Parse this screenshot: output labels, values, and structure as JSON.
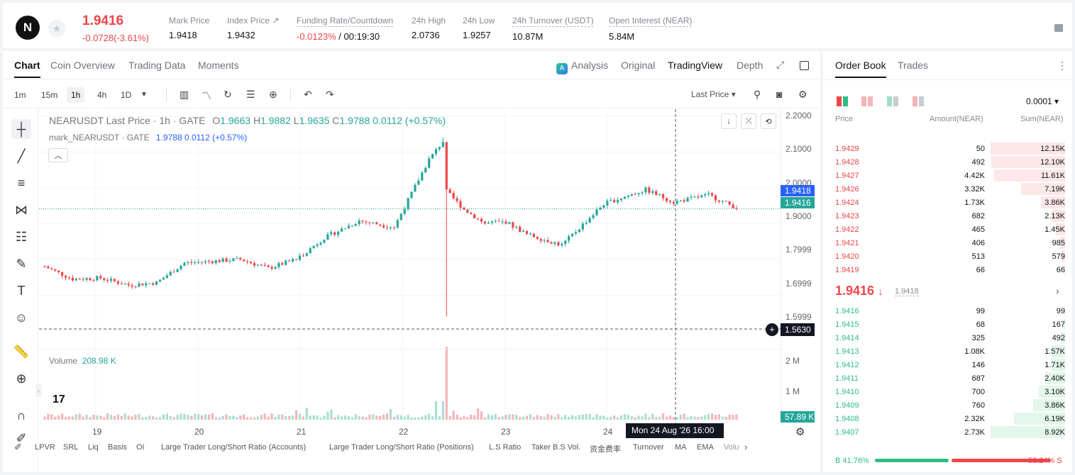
{
  "colors": {
    "up": "#26a69a",
    "down": "#ef454a",
    "ask_bg": "#fde7e8",
    "bid_bg": "#e3f6ec",
    "bid_text": "#2ebd85"
  },
  "ticker": {
    "logo": "N",
    "star_icon": "star-icon",
    "last_price": "1.9416",
    "change": "-0.0728(-3.61%)",
    "stats": [
      {
        "label": "Mark Price",
        "value": "1.9418"
      },
      {
        "label": "Index Price ↗",
        "value": "1.9432"
      },
      {
        "label": "Funding Rate/Countdown",
        "value_red": "-0.0123%",
        "value": " / 00:19:30"
      },
      {
        "label": "24h High",
        "value": "2.0736"
      },
      {
        "label": "24h Low",
        "value": "1.9257"
      },
      {
        "label": "24h Turnover (USDT)",
        "value": "10.87M"
      },
      {
        "label": "Open Interest (NEAR)",
        "value": "5.84M"
      }
    ]
  },
  "chart_tabs": [
    "Chart",
    "Coin Overview",
    "Trading Data",
    "Moments"
  ],
  "view_tabs": {
    "analysis": "Analysis",
    "original": "Original",
    "tradingview": "TradingView",
    "depth": "Depth"
  },
  "intervals": [
    "1m",
    "15m",
    "1h",
    "4h",
    "1D"
  ],
  "active_interval": "1h",
  "price_type": "Last Price",
  "legend": {
    "title": "NEARUSDT Last Price · 1h · GATE",
    "o_label": "O",
    "o": "1.9663",
    "h_label": "H",
    "h": "1.9882",
    "l_label": "L",
    "l": "1.9635",
    "c_label": "C",
    "c": "1.9788",
    "chg": "0.0112 (+0.57%)",
    "mark_title": "mark_NEARUSDT · GATE",
    "mark_val": "1.9788  0.0112  (+0.57%)"
  },
  "volume": {
    "label": "Volume",
    "value": "208.98 K",
    "current_tag": "57.89 K"
  },
  "price_tags": {
    "mark": "1.9418",
    "last": "1.9416",
    "crosshair": "1.5630"
  },
  "crosshair_time": "Mon 24 Aug '26   16:00",
  "y_ticks": [
    "2.2000",
    "2.1000",
    "2.0000",
    "1.9000",
    "1.7999",
    "1.6999",
    "1.5999"
  ],
  "vol_ticks": [
    "2 M",
    "1 M"
  ],
  "x_ticks": [
    "19",
    "20",
    "21",
    "22",
    "23",
    "24"
  ],
  "bottom_indicators": [
    "LPVR",
    "SRL",
    "Liq",
    "Basis",
    "OI",
    "Large Trader Long/Short Ratio (Accounts)",
    "Large Trader Long/Short Ratio (Positions)",
    "L.S Ratio",
    "Taker B.S Vol.",
    "资金费率",
    "Turnover",
    "MA",
    "EMA",
    "Volu"
  ],
  "chart_data": {
    "type": "candlestick",
    "title": "NEARUSDT Last Price · 1h · GATE",
    "ylim": [
      1.55,
      2.22
    ],
    "x_ticks": [
      "19",
      "20",
      "21",
      "22",
      "23",
      "24"
    ],
    "approx_close_path": [
      {
        "x": "19",
        "y": 1.62
      },
      {
        "x": "20",
        "y": 1.63
      },
      {
        "x": "20",
        "y": 1.76
      },
      {
        "x": "21",
        "y": 1.72
      },
      {
        "x": "21",
        "y": 1.9
      },
      {
        "x": "22",
        "y": 1.88
      },
      {
        "x": "22",
        "y": 2.13
      },
      {
        "x": "22",
        "y": 1.98
      },
      {
        "x": "23",
        "y": 1.87
      },
      {
        "x": "23",
        "y": 1.82
      },
      {
        "x": "24",
        "y": 1.98
      },
      {
        "x": "24",
        "y": 1.94
      }
    ],
    "notable_wick_low": 1.64,
    "notable_high": 2.14
  },
  "orderbook": {
    "tabs": [
      "Order Book",
      "Trades"
    ],
    "precision": "0.0001",
    "headers": {
      "price": "Price",
      "amount": "Amount(NEAR)",
      "sum": "Sum(NEAR)"
    },
    "asks": [
      {
        "p": "1.9429",
        "a": "50",
        "s": "12.15K",
        "d": 1.0
      },
      {
        "p": "1.9428",
        "a": "492",
        "s": "12.10K",
        "d": 0.99
      },
      {
        "p": "1.9427",
        "a": "4.42K",
        "s": "11.61K",
        "d": 0.95
      },
      {
        "p": "1.9426",
        "a": "3.32K",
        "s": "7.19K",
        "d": 0.59
      },
      {
        "p": "1.9424",
        "a": "1.73K",
        "s": "3.86K",
        "d": 0.32
      },
      {
        "p": "1.9423",
        "a": "682",
        "s": "2.13K",
        "d": 0.18
      },
      {
        "p": "1.9422",
        "a": "465",
        "s": "1.45K",
        "d": 0.12
      },
      {
        "p": "1.9421",
        "a": "406",
        "s": "985",
        "d": 0.08
      },
      {
        "p": "1.9420",
        "a": "513",
        "s": "579",
        "d": 0.05
      },
      {
        "p": "1.9419",
        "a": "66",
        "s": "66",
        "d": 0.01
      }
    ],
    "mid": {
      "price": "1.9416",
      "arrow": "↓",
      "mark": "1.9418"
    },
    "bids": [
      {
        "p": "1.9416",
        "a": "99",
        "s": "99",
        "d": 0.01
      },
      {
        "p": "1.9415",
        "a": "68",
        "s": "167",
        "d": 0.02
      },
      {
        "p": "1.9414",
        "a": "325",
        "s": "492",
        "d": 0.06
      },
      {
        "p": "1.9413",
        "a": "1.08K",
        "s": "1.57K",
        "d": 0.18
      },
      {
        "p": "1.9412",
        "a": "146",
        "s": "1.71K",
        "d": 0.19
      },
      {
        "p": "1.9411",
        "a": "687",
        "s": "2.40K",
        "d": 0.27
      },
      {
        "p": "1.9410",
        "a": "700",
        "s": "3.10K",
        "d": 0.35
      },
      {
        "p": "1.9409",
        "a": "760",
        "s": "3.86K",
        "d": 0.43
      },
      {
        "p": "1.9408",
        "a": "2.32K",
        "s": "6.19K",
        "d": 0.69
      },
      {
        "p": "1.9407",
        "a": "2.73K",
        "s": "8.92K",
        "d": 1.0
      }
    ],
    "buy_ratio": "41.76%",
    "sell_ratio": "58.24%",
    "buy_label": "B",
    "sell_label": "S",
    "buy_fraction": 0.4176
  }
}
